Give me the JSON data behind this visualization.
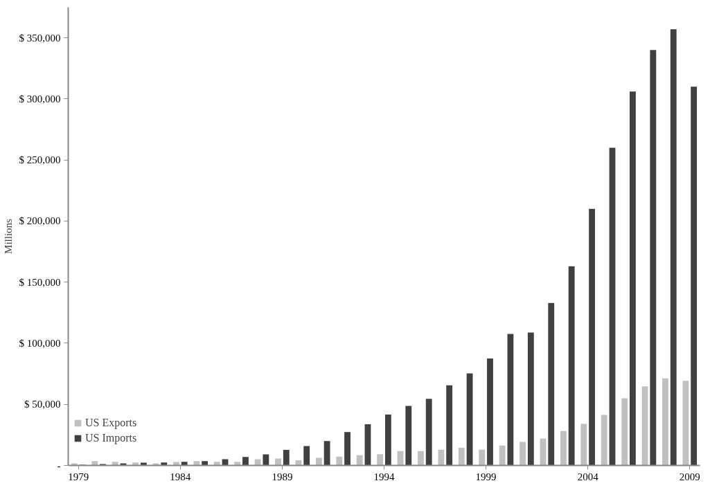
{
  "chart_data": {
    "type": "bar",
    "ylabel": "Millions",
    "categories": [
      "1979",
      null,
      null,
      null,
      null,
      "1984",
      null,
      null,
      null,
      null,
      "1989",
      null,
      null,
      null,
      null,
      "1994",
      null,
      null,
      null,
      null,
      "1999",
      null,
      null,
      null,
      null,
      "2004",
      null,
      null,
      null,
      null,
      "2009"
    ],
    "series": [
      {
        "name": "US Exports",
        "color": "#c0c0c0",
        "values": [
          1700,
          3600,
          3000,
          2400,
          1700,
          2800,
          3600,
          3000,
          3000,
          5100,
          5600,
          4300,
          6200,
          7200,
          8400,
          9200,
          11800,
          11800,
          12900,
          14400,
          12900,
          16300,
          19300,
          22000,
          28200,
          34000,
          41300,
          55000,
          64700,
          71300,
          69300
        ]
      },
      {
        "name": "US Imports",
        "color": "#404040",
        "values": [
          600,
          1100,
          1700,
          2200,
          2400,
          3000,
          3600,
          5100,
          6900,
          9000,
          12700,
          15900,
          19900,
          27300,
          33700,
          41600,
          48700,
          54500,
          65500,
          75300,
          87500,
          107600,
          108800,
          133000,
          163000,
          210000,
          260000,
          306000,
          340000,
          357000,
          310000
        ]
      }
    ],
    "ylim": [
      0,
      375000
    ],
    "yticks": [
      {
        "value": 0,
        "label": "-"
      },
      {
        "value": 50000,
        "label": "$ 50,000"
      },
      {
        "value": 100000,
        "label": "$ 100,000"
      },
      {
        "value": 150000,
        "label": "$ 150,000"
      },
      {
        "value": 200000,
        "label": "$ 200,000"
      },
      {
        "value": 250000,
        "label": "$ 250,000"
      },
      {
        "value": 300000,
        "label": "$ 300,000"
      },
      {
        "value": 350000,
        "label": "$ 350,000"
      }
    ],
    "grid": false,
    "legend": "bottom left"
  }
}
